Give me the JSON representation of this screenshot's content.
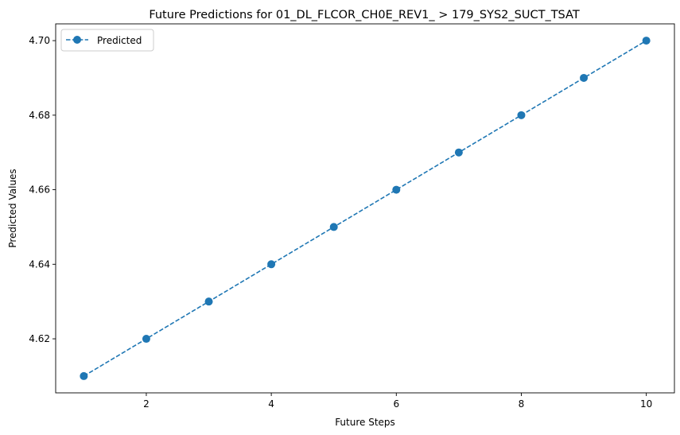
{
  "chart_data": {
    "type": "line",
    "title": "Future Predictions for 01_DL_FLCOR_CH0E_REV1_ > 179_SYS2_SUCT_TSAT",
    "xlabel": "Future Steps",
    "ylabel": "Predicted Values",
    "xlim": [
      0.55,
      10.45
    ],
    "ylim": [
      4.6055,
      4.7045
    ],
    "x_ticks": [
      2,
      4,
      6,
      8,
      10
    ],
    "y_ticks": [
      4.62,
      4.64,
      4.66,
      4.68,
      4.7
    ],
    "x_tick_labels": [
      "2",
      "4",
      "6",
      "8",
      "10"
    ],
    "y_tick_labels": [
      "4.62",
      "4.64",
      "4.66",
      "4.68",
      "4.70"
    ],
    "grid": false,
    "legend": {
      "position": "top-left",
      "entries": [
        "Predicted"
      ]
    },
    "series": [
      {
        "name": "Predicted",
        "color": "#1f77b4",
        "line_style": "dashed",
        "marker": "circle",
        "x": [
          1,
          2,
          3,
          4,
          5,
          6,
          7,
          8,
          9,
          10
        ],
        "y": [
          4.61,
          4.62,
          4.63,
          4.64,
          4.65,
          4.66,
          4.67,
          4.68,
          4.69,
          4.7
        ]
      }
    ]
  }
}
